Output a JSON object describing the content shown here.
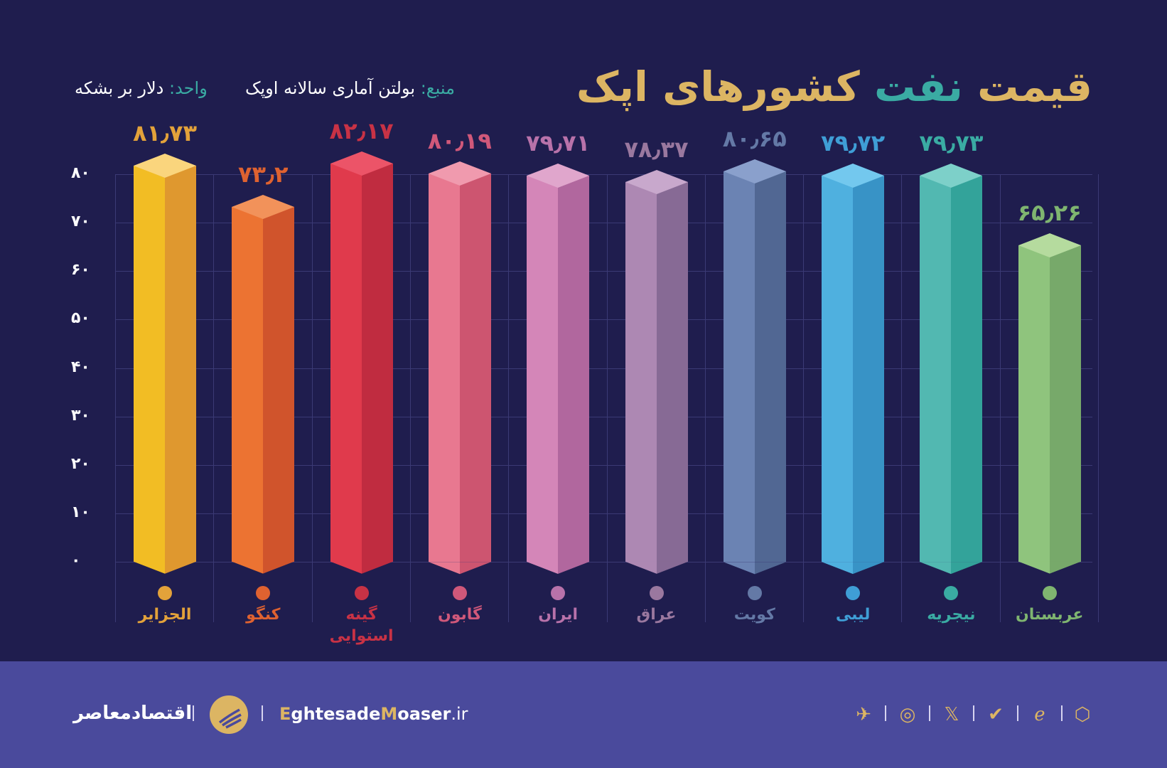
{
  "title": {
    "part1": "قیمت",
    "part2_accent": "نفت",
    "part3": "کشورهای اپک"
  },
  "source": {
    "label": "منبع:",
    "value": "بولتن آماری سالانه اوپک"
  },
  "unit": {
    "label": "واحد:",
    "value": "دلار بر بشکه"
  },
  "colors": {
    "background": "#1f1d4e",
    "footer": "#4a4a9c",
    "title_gold": "#dcb563",
    "title_teal": "#3aaba3"
  },
  "chart_data": {
    "type": "bar",
    "title": "قیمت نفت کشورهای اپک",
    "xlabel": "",
    "ylabel": "دلار بر بشکه",
    "ylim": [
      0,
      80
    ],
    "yticks": [
      "۰",
      "۱۰",
      "۲۰",
      "۳۰",
      "۴۰",
      "۵۰",
      "۶۰",
      "۷۰",
      "۸۰"
    ],
    "ytick_values": [
      0,
      10,
      20,
      30,
      40,
      50,
      60,
      70,
      80
    ],
    "grid": true,
    "legend_position": "none",
    "categories": [
      "الجزایر",
      "کنگو",
      "گینه استوایی",
      "گابون",
      "ایران",
      "عراق",
      "کویت",
      "لیبی",
      "نیجریه",
      "عربستان"
    ],
    "values": [
      81.73,
      73.2,
      82.17,
      80.19,
      79.71,
      78.37,
      80.65,
      79.72,
      79.73,
      65.26
    ],
    "value_labels": [
      "۸۱٫۷۳",
      "۷۳٫۲",
      "۸۲٫۱۷",
      "۸۰٫۱۹",
      "۷۹٫۷۱",
      "۷۸٫۳۷",
      "۸۰٫۶۵",
      "۷۹٫۷۲",
      "۷۹٫۷۳",
      "۶۵٫۲۶"
    ],
    "bar_colors_front": [
      "#f2bd24",
      "#ec7332",
      "#e03a4c",
      "#e87890",
      "#d486b8",
      "#ad88b3",
      "#6b83b3",
      "#4fb0df",
      "#52b8b1",
      "#8fc47d"
    ],
    "bar_colors_side": [
      "#df982f",
      "#d0542c",
      "#c02c40",
      "#cd5570",
      "#b1679e",
      "#876a95",
      "#516793",
      "#3893c6",
      "#33a39a",
      "#77a96a"
    ],
    "bar_colors_top": [
      "#fad57d",
      "#f2925a",
      "#ec5468",
      "#f09aae",
      "#e0a6cc",
      "#c8a8cc",
      "#8aa0cc",
      "#73c8ee",
      "#7dd0c9",
      "#b5db9e"
    ],
    "label_colors": [
      "#e3a23a",
      "#df6230",
      "#c83245",
      "#d0587a",
      "#b872aa",
      "#9a789f",
      "#6479a6",
      "#3f9ed6",
      "#3aaba3",
      "#7fb570"
    ]
  },
  "footer": {
    "brand_fa": "اقتصادمعاصر",
    "site": {
      "first": "E",
      "part1": "ghtesade",
      "m": "M",
      "part2": "oaser",
      "tld": ".ir"
    },
    "social_icons": [
      "telegram-icon",
      "instagram-icon",
      "x-icon",
      "checkmark-shield-icon",
      "e-logo-icon",
      "hexagon-icon"
    ],
    "social_glyphs": [
      "✈",
      "◎",
      "𝕏",
      "✔",
      "ℯ",
      "⬡"
    ]
  }
}
